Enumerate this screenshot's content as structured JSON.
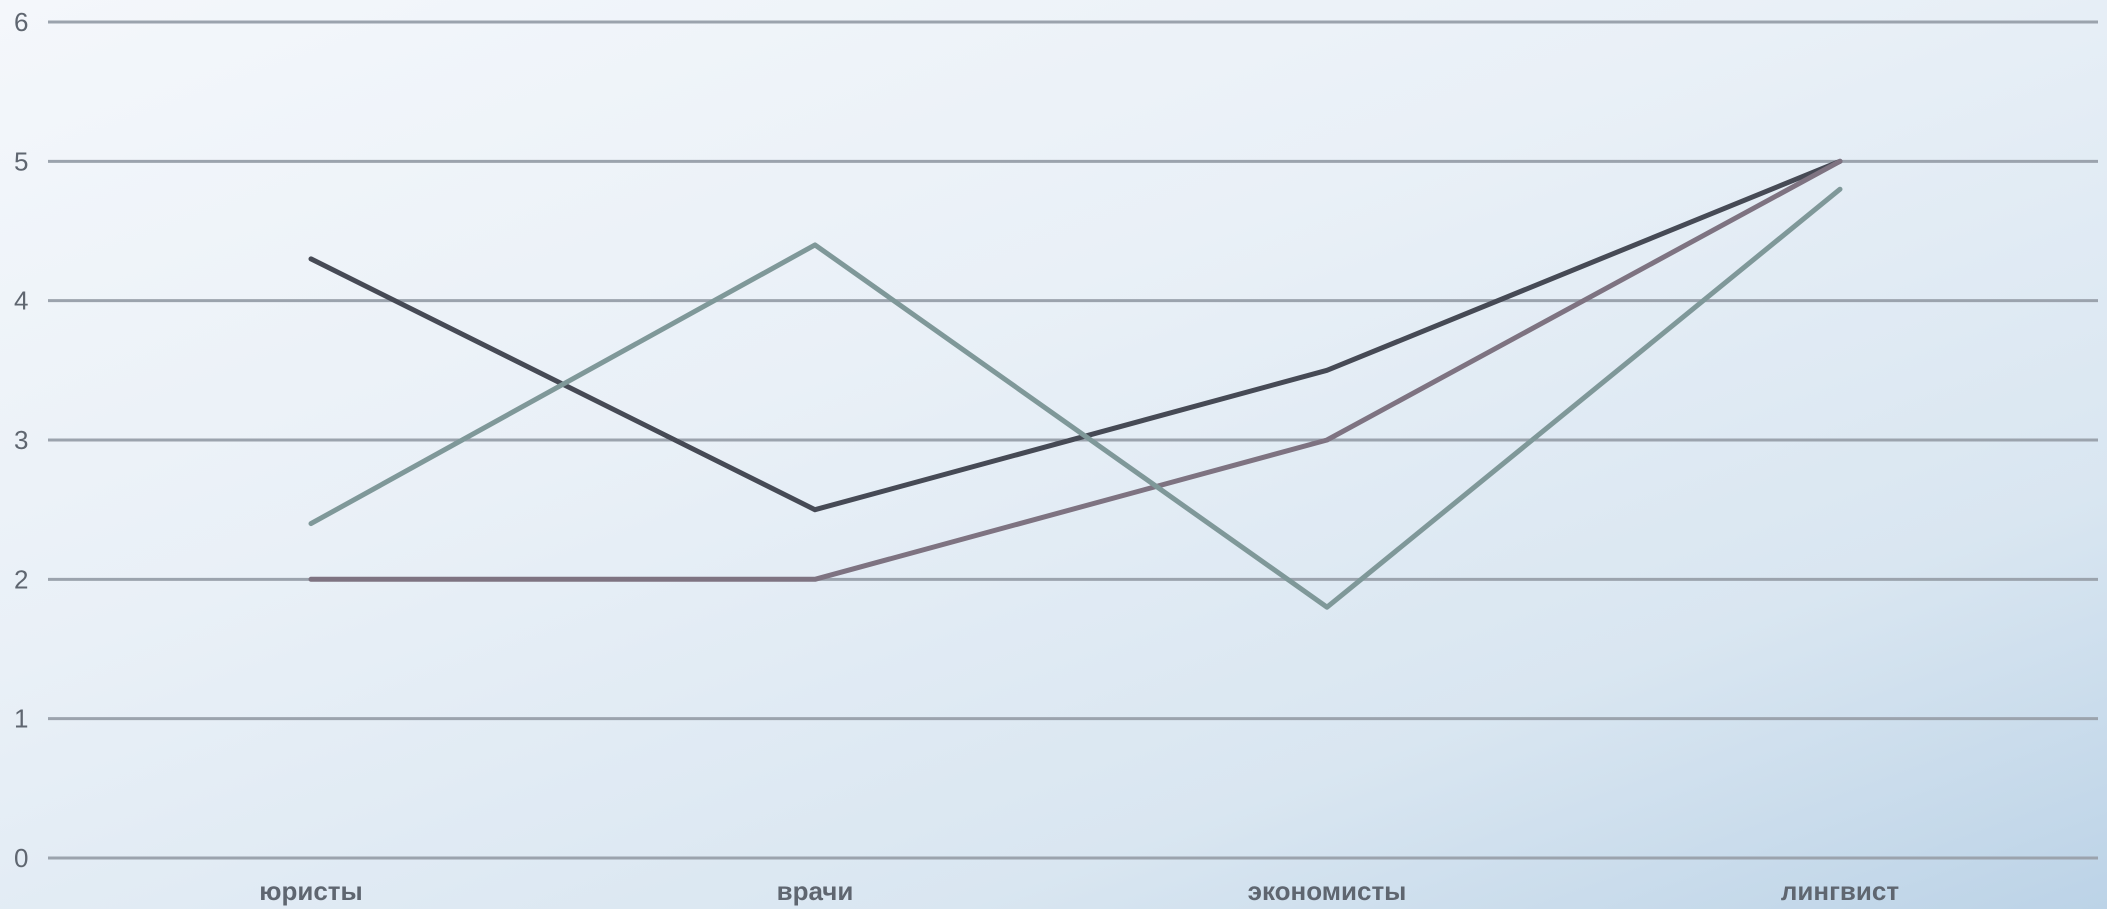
{
  "chart_data": {
    "type": "line",
    "categories": [
      "юристы",
      "врачи",
      "экономисты",
      "лингвист"
    ],
    "series": [
      {
        "color": "#464a55",
        "values": [
          4.3,
          2.5,
          3.5,
          5.0
        ]
      },
      {
        "color": "#7e7381",
        "values": [
          2.0,
          2.0,
          3.0,
          5.0
        ]
      },
      {
        "color": "#7f9899",
        "values": [
          2.4,
          4.4,
          1.8,
          4.8
        ]
      }
    ],
    "yticks": [
      "0",
      "1",
      "2",
      "3",
      "4",
      "5",
      "6"
    ],
    "ylim": [
      0,
      6
    ],
    "grid": true,
    "legend": "none"
  }
}
